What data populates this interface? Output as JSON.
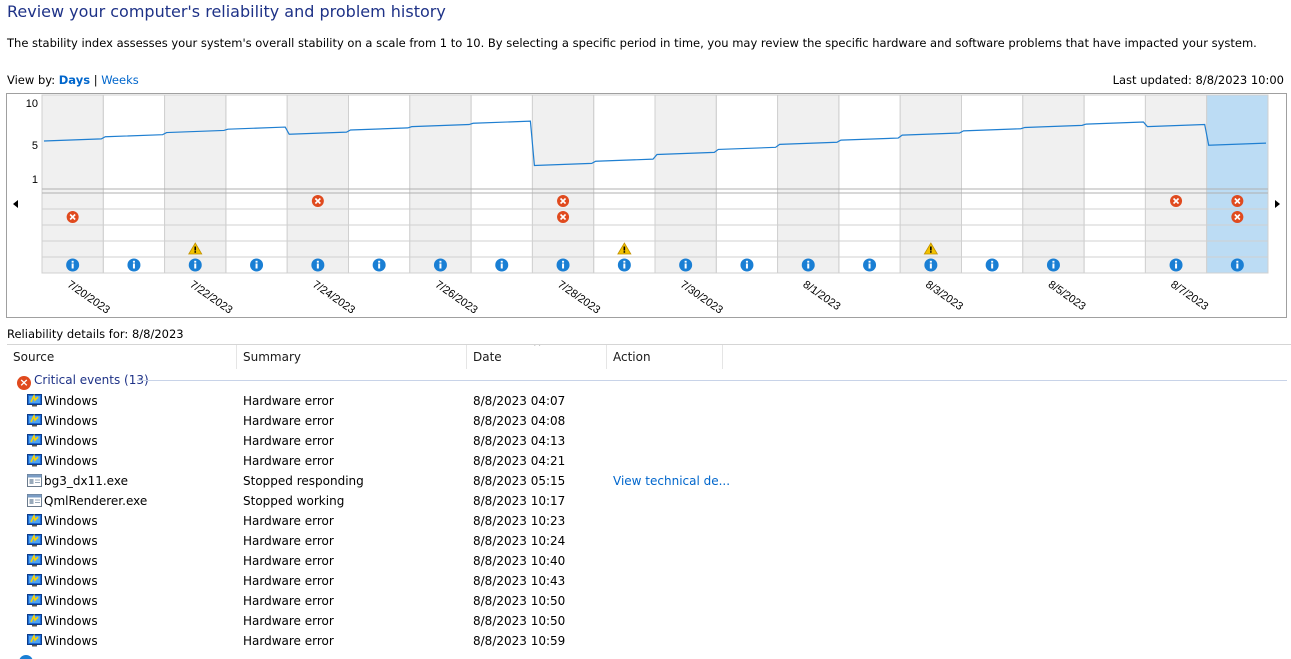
{
  "header": {
    "title": "Review your computer's reliability and problem history",
    "description": "The stability index assesses your system's overall stability on a scale from 1 to 10. By selecting a specific period in time, you may review the specific hardware and software problems that have impacted your system.",
    "view_by_label": "View by:",
    "view_days": "Days",
    "view_sep": "|",
    "view_weeks": "Weeks",
    "last_updated": "Last updated: 8/8/2023 10:00"
  },
  "chart_data": {
    "type": "line",
    "y_ticks": [
      "10",
      "5",
      "1"
    ],
    "ylim": [
      1,
      10
    ],
    "x_labels": [
      "7/20/2023",
      "7/22/2023",
      "7/24/2023",
      "7/26/2023",
      "7/28/2023",
      "7/30/2023",
      "8/1/2023",
      "8/3/2023",
      "8/5/2023",
      "8/7/2023"
    ],
    "days": [
      "7/20/2023",
      "7/21/2023",
      "7/22/2023",
      "7/23/2023",
      "7/24/2023",
      "7/25/2023",
      "7/26/2023",
      "7/27/2023",
      "7/28/2023",
      "7/29/2023",
      "7/30/2023",
      "7/31/2023",
      "8/1/2023",
      "8/2/2023",
      "8/3/2023",
      "8/4/2023",
      "8/5/2023",
      "8/6/2023",
      "8/7/2023",
      "8/8/2023"
    ],
    "selected_day": "8/8/2023",
    "stability_index": [
      5.5,
      6.0,
      6.5,
      6.9,
      6.3,
      6.8,
      7.2,
      7.6,
      2.6,
      3.1,
      3.9,
      4.5,
      5.1,
      5.6,
      6.2,
      6.7,
      7.1,
      7.5,
      7.2,
      5.0
    ],
    "rows": [
      "critical-1",
      "critical-2",
      "critical-3",
      "warnings",
      "information"
    ],
    "events": {
      "critical_row1": [
        "7/24/2023",
        "7/28/2023",
        "8/7/2023",
        "8/8/2023"
      ],
      "critical_row2": [
        "7/20/2023",
        "7/28/2023",
        "8/8/2023"
      ],
      "warnings": [
        "7/22/2023",
        "7/29/2023",
        "8/3/2023"
      ],
      "information": [
        "7/20/2023",
        "7/21/2023",
        "7/22/2023",
        "7/23/2023",
        "7/24/2023",
        "7/25/2023",
        "7/26/2023",
        "7/27/2023",
        "7/28/2023",
        "7/29/2023",
        "7/30/2023",
        "7/31/2023",
        "8/1/2023",
        "8/2/2023",
        "8/3/2023",
        "8/4/2023",
        "8/5/2023",
        "8/7/2023",
        "8/8/2023"
      ]
    },
    "colors": {
      "line": "#1f7fd1",
      "shade": "#f0f0f0",
      "selected": "#bcdcf4",
      "critical": "#e04a1e",
      "warning": "#f2c200",
      "info": "#1a7fd4",
      "grid": "#d0d0d0"
    }
  },
  "details": {
    "label": "Reliability details for: 8/8/2023",
    "columns": [
      "Source",
      "Summary",
      "Date",
      "Action"
    ],
    "group": {
      "label": "Critical events (13)",
      "icon": "critical-error-icon"
    },
    "rows": [
      {
        "source": "Windows",
        "icon": "windows-icon",
        "summary": "Hardware error",
        "date": "8/8/2023 04:07",
        "action": ""
      },
      {
        "source": "Windows",
        "icon": "windows-icon",
        "summary": "Hardware error",
        "date": "8/8/2023 04:08",
        "action": ""
      },
      {
        "source": "Windows",
        "icon": "windows-icon",
        "summary": "Hardware error",
        "date": "8/8/2023 04:13",
        "action": ""
      },
      {
        "source": "Windows",
        "icon": "windows-icon",
        "summary": "Hardware error",
        "date": "8/8/2023 04:21",
        "action": ""
      },
      {
        "source": "bg3_dx11.exe",
        "icon": "application-icon",
        "summary": "Stopped responding",
        "date": "8/8/2023 05:15",
        "action": "View technical de..."
      },
      {
        "source": "QmlRenderer.exe",
        "icon": "application-icon",
        "summary": "Stopped working",
        "date": "8/8/2023 10:17",
        "action": ""
      },
      {
        "source": "Windows",
        "icon": "windows-icon",
        "summary": "Hardware error",
        "date": "8/8/2023 10:23",
        "action": ""
      },
      {
        "source": "Windows",
        "icon": "windows-icon",
        "summary": "Hardware error",
        "date": "8/8/2023 10:24",
        "action": ""
      },
      {
        "source": "Windows",
        "icon": "windows-icon",
        "summary": "Hardware error",
        "date": "8/8/2023 10:40",
        "action": ""
      },
      {
        "source": "Windows",
        "icon": "windows-icon",
        "summary": "Hardware error",
        "date": "8/8/2023 10:43",
        "action": ""
      },
      {
        "source": "Windows",
        "icon": "windows-icon",
        "summary": "Hardware error",
        "date": "8/8/2023 10:50",
        "action": ""
      },
      {
        "source": "Windows",
        "icon": "windows-icon",
        "summary": "Hardware error",
        "date": "8/8/2023 10:50",
        "action": ""
      },
      {
        "source": "Windows",
        "icon": "windows-icon",
        "summary": "Hardware error",
        "date": "8/8/2023 10:59",
        "action": ""
      }
    ]
  }
}
